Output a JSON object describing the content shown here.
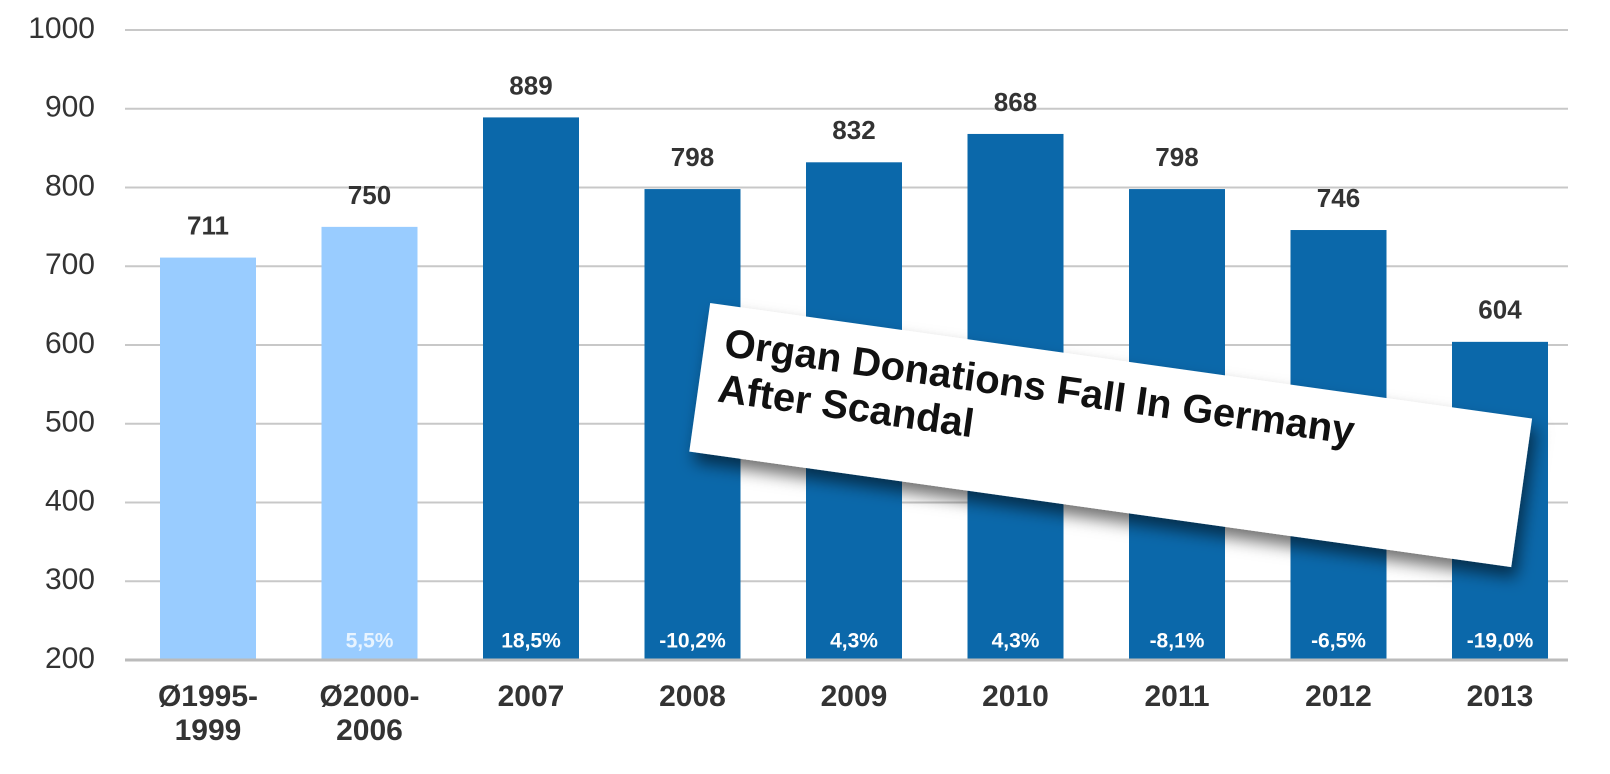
{
  "chart_data": {
    "type": "bar",
    "categories": [
      "Ø1995-\n1999",
      "Ø2000-\n2006",
      "2007",
      "2008",
      "2009",
      "2010",
      "2011",
      "2012",
      "2013"
    ],
    "values": [
      711,
      750,
      889,
      798,
      832,
      868,
      798,
      746,
      604
    ],
    "colors": [
      "#99ccff",
      "#99ccff",
      "#0b68aa",
      "#0b68aa",
      "#0b68aa",
      "#0b68aa",
      "#0b68aa",
      "#0b68aa",
      "#0b68aa"
    ],
    "change_labels": [
      null,
      "5,5%",
      "18,5%",
      "-10,2%",
      "4,3%",
      "4,3%",
      "-8,1%",
      "-6,5%",
      "-19,0%"
    ],
    "ylim": [
      200,
      1000
    ],
    "yticks": [
      200,
      300,
      400,
      500,
      600,
      700,
      800,
      900,
      1000
    ],
    "grid": true,
    "annotation": {
      "lines": [
        "Organ Donations Fall In Germany",
        "After Scandal"
      ]
    }
  }
}
